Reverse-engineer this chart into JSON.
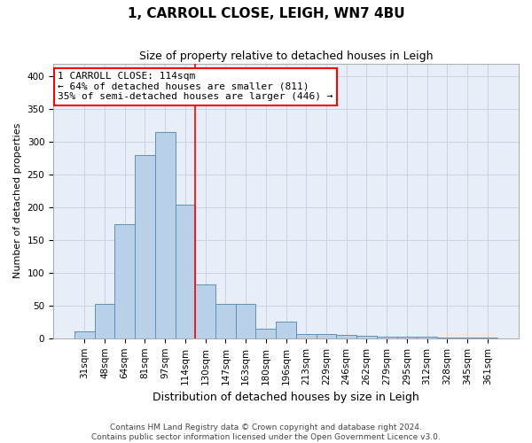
{
  "title": "1, CARROLL CLOSE, LEIGH, WN7 4BU",
  "subtitle": "Size of property relative to detached houses in Leigh",
  "xlabel": "Distribution of detached houses by size in Leigh",
  "ylabel": "Number of detached properties",
  "footer_line1": "Contains HM Land Registry data © Crown copyright and database right 2024.",
  "footer_line2": "Contains public sector information licensed under the Open Government Licence v3.0.",
  "annotation_line1": "1 CARROLL CLOSE: 114sqm",
  "annotation_line2": "← 64% of detached houses are smaller (811)",
  "annotation_line3": "35% of semi-detached houses are larger (446) →",
  "bar_labels": [
    "31sqm",
    "48sqm",
    "64sqm",
    "81sqm",
    "97sqm",
    "114sqm",
    "130sqm",
    "147sqm",
    "163sqm",
    "180sqm",
    "196sqm",
    "213sqm",
    "229sqm",
    "246sqm",
    "262sqm",
    "279sqm",
    "295sqm",
    "312sqm",
    "328sqm",
    "345sqm",
    "361sqm"
  ],
  "bar_heights": [
    11,
    53,
    175,
    280,
    315,
    204,
    83,
    53,
    53,
    15,
    26,
    7,
    7,
    5,
    4,
    3,
    2,
    2,
    1,
    1,
    1
  ],
  "bar_color": "#b8d0e8",
  "bar_edge_color": "#6090b8",
  "grid_color": "#c8d4e4",
  "background_color": "#e8eef8",
  "marker_bar_index": 5,
  "marker_color": "red",
  "ylim": [
    0,
    420
  ],
  "yticks": [
    0,
    50,
    100,
    150,
    200,
    250,
    300,
    350,
    400
  ],
  "title_fontsize": 11,
  "subtitle_fontsize": 9,
  "xlabel_fontsize": 9,
  "ylabel_fontsize": 8,
  "tick_fontsize": 7.5,
  "footer_fontsize": 6.5,
  "annot_fontsize": 8
}
